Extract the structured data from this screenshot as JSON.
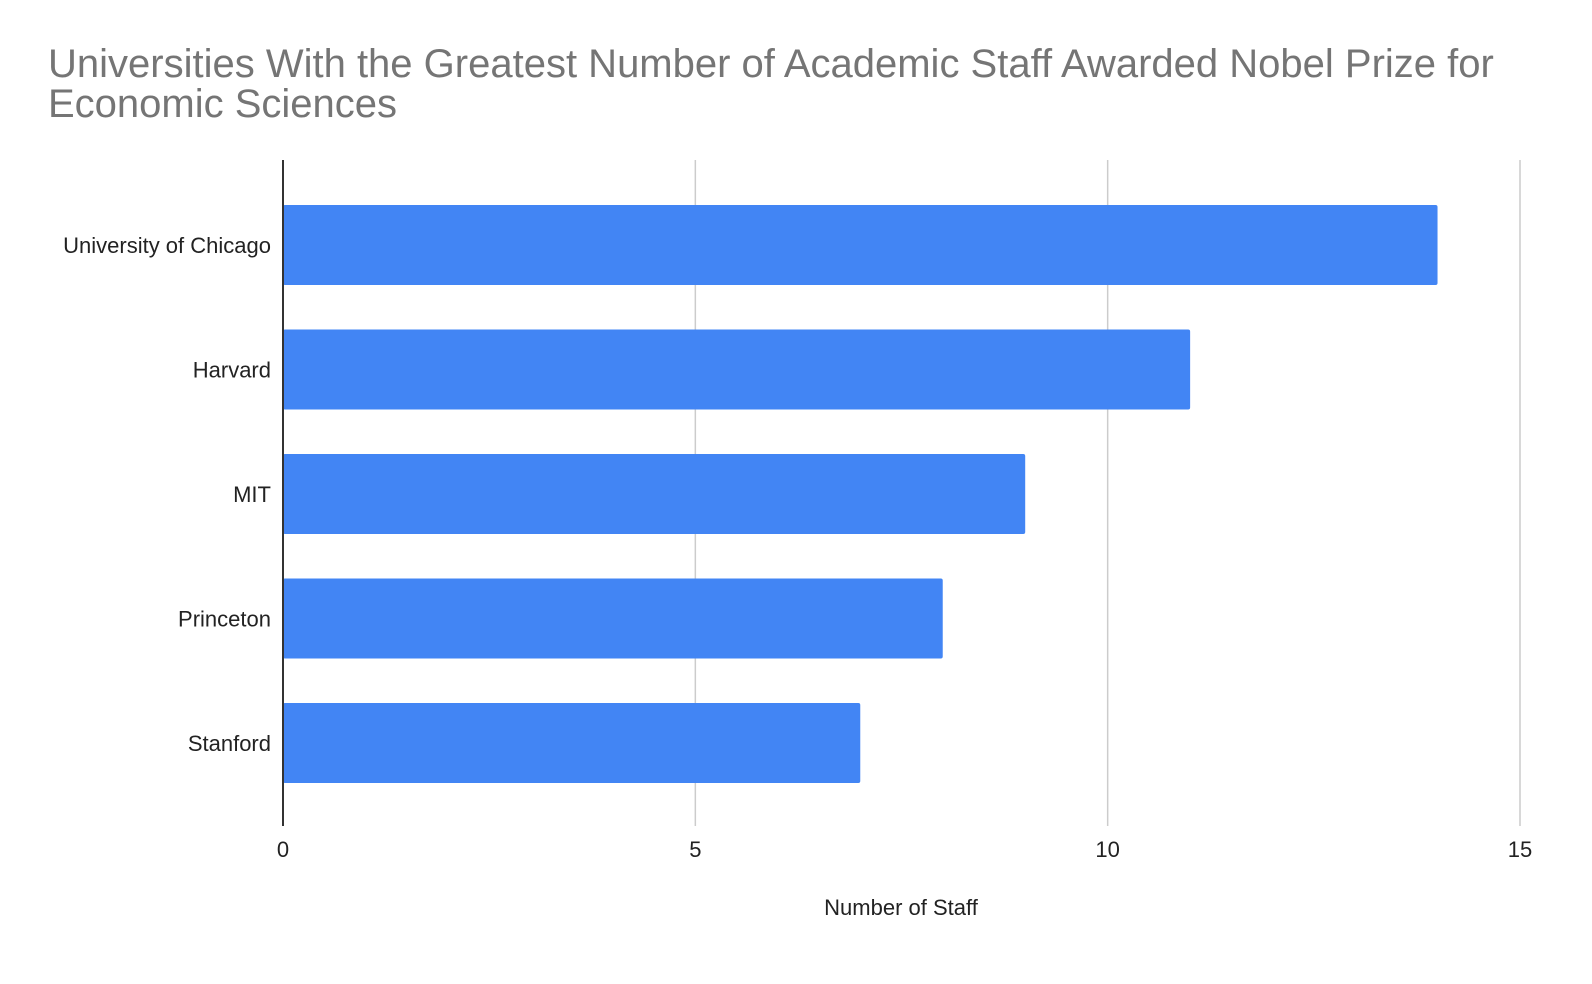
{
  "chart_data": {
    "type": "bar",
    "orientation": "horizontal",
    "title": "Universities With the Greatest Number of Academic Staff Awarded Nobel Prize for Economic Sciences",
    "xlabel": "Number of Staff",
    "ylabel": "",
    "categories": [
      "University of Chicago",
      "Harvard",
      "MIT",
      "Princeton",
      "Stanford"
    ],
    "values": [
      14,
      11,
      9,
      8,
      7
    ],
    "xlim": [
      0,
      15
    ],
    "xticks": [
      "0",
      "5",
      "10",
      "15"
    ],
    "grid": true,
    "legend": "none",
    "bar_color": "#4285f4",
    "grid_color": "#cccccc",
    "axis_color": "#333333"
  }
}
